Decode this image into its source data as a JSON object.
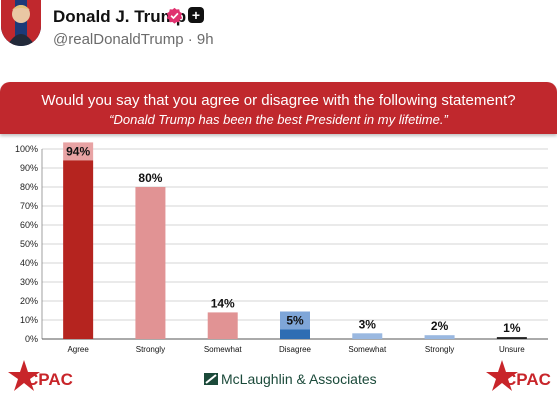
{
  "post": {
    "author": "Donald J. Trump",
    "handle": "@realDonaldTrump · 9h"
  },
  "banner": {
    "question": "Would you say that you agree or disagree with the following statement?",
    "statement": "“Donald Trump has been the best President in my lifetime.”"
  },
  "footer": {
    "left_logo": "CPAC",
    "right_logo": "CPAC",
    "center_text": "McLaughlin & Associates"
  },
  "colors": {
    "banner": "#c0282d",
    "agree": "#b5241f",
    "strongly_agree": "#e19394",
    "somewhat_agree": "#e19394",
    "disagree": "#2e6db3",
    "somewhat_disagree": "#9ab8e0",
    "strongly_disagree": "#9ab8e0",
    "unsure": "#222222",
    "highlight_agree": "#e8a3a4",
    "highlight_disagree": "#7fa6d8"
  },
  "chart_data": {
    "type": "bar",
    "categories": [
      "Agree",
      "Strongly",
      "Somewhat",
      "Disagree",
      "Somewhat",
      "Strongly",
      "Unsure"
    ],
    "values": [
      94,
      80,
      14,
      5,
      3,
      2,
      1
    ],
    "value_labels": [
      "94%",
      "80%",
      "14%",
      "5%",
      "3%",
      "2%",
      "1%"
    ],
    "highlighted": [
      true,
      false,
      false,
      true,
      false,
      false,
      false
    ],
    "yticks": [
      "0%",
      "10%",
      "20%",
      "30%",
      "40%",
      "50%",
      "60%",
      "70%",
      "80%",
      "90%",
      "100%"
    ],
    "ylim": [
      0,
      100
    ],
    "grid": true
  }
}
